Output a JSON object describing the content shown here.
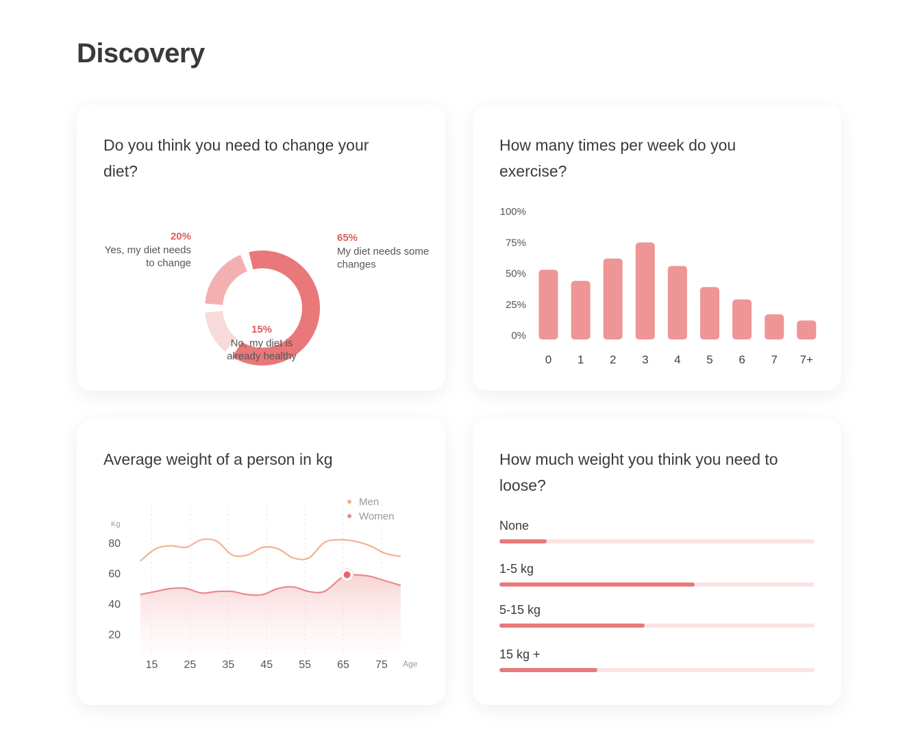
{
  "page": {
    "title": "Discovery"
  },
  "cards": {
    "diet": {
      "title": "Do you think you need to change your diet?"
    },
    "exercise": {
      "title": "How many times per week do you exercise?"
    },
    "weight": {
      "title": "Average weight of a person in kg"
    },
    "loose": {
      "title": "How much weight you think you need to loose?"
    }
  },
  "colors": {
    "accent": "#e8787a",
    "accent_dark": "#e05a5a",
    "men_line": "#f5b08f",
    "women_line": "#e8898b",
    "track": "#fbe3e3"
  },
  "chart_data": [
    {
      "type": "pie",
      "variant": "donut",
      "slices": [
        {
          "percent_label": "65%",
          "label": "My diet needs some changes",
          "value": 65,
          "color": "#e8787a"
        },
        {
          "percent_label": "15%",
          "label": "No, my diet is already healthy",
          "value": 15,
          "color": "#f9dada"
        },
        {
          "percent_label": "20%",
          "label": "Yes, my diet needs to change",
          "value": 20,
          "color": "#f2b0b1"
        }
      ]
    },
    {
      "type": "bar",
      "categories": [
        "0",
        "1",
        "2",
        "3",
        "4",
        "5",
        "6",
        "7",
        "7+"
      ],
      "values": [
        53,
        44,
        62,
        75,
        56,
        39,
        29,
        17,
        12
      ],
      "ylim": [
        0,
        100
      ],
      "yticks": [
        {
          "value": 0,
          "label": "0%"
        },
        {
          "value": 25,
          "label": "25%"
        },
        {
          "value": 50,
          "label": "50%"
        },
        {
          "value": 75,
          "label": "75%"
        },
        {
          "value": 100,
          "label": "100%"
        }
      ],
      "grid": false,
      "color": "#ee9596"
    },
    {
      "type": "line",
      "xlabel": "Age",
      "ylabel": "Kg",
      "xlim": [
        10,
        80
      ],
      "ylim": [
        10,
        90
      ],
      "xticks": [
        15,
        25,
        35,
        45,
        55,
        65,
        75
      ],
      "yticks": [
        20,
        40,
        60,
        80
      ],
      "grid": "vertical-dotted",
      "legend_position": "top-right",
      "highlight": {
        "series": "Women",
        "x": 66,
        "y": 59
      },
      "series": [
        {
          "name": "Men",
          "color": "#f5b08f",
          "x": [
            12,
            16,
            20,
            24,
            28,
            32,
            36,
            40,
            44,
            48,
            52,
            56,
            60,
            64,
            68,
            72,
            76,
            80
          ],
          "y": [
            68,
            76,
            78,
            77,
            82,
            81,
            72,
            72,
            77,
            76,
            70,
            70,
            80,
            82,
            81,
            78,
            73,
            71
          ]
        },
        {
          "name": "Women",
          "color": "#e8898b",
          "x": [
            12,
            16,
            20,
            24,
            28,
            32,
            36,
            40,
            44,
            48,
            52,
            56,
            60,
            64,
            66,
            68,
            72,
            76,
            80
          ],
          "y": [
            46,
            48,
            50,
            50,
            47,
            48,
            48,
            46,
            46,
            50,
            51,
            48,
            48,
            56,
            59,
            59,
            58,
            55,
            52
          ]
        }
      ]
    },
    {
      "type": "bar",
      "orientation": "horizontal",
      "categories": [
        "None",
        "1-5 kg",
        "5-15 kg",
        "15 kg +"
      ],
      "values": [
        15,
        62,
        46,
        31
      ],
      "xlim": [
        0,
        100
      ]
    }
  ]
}
